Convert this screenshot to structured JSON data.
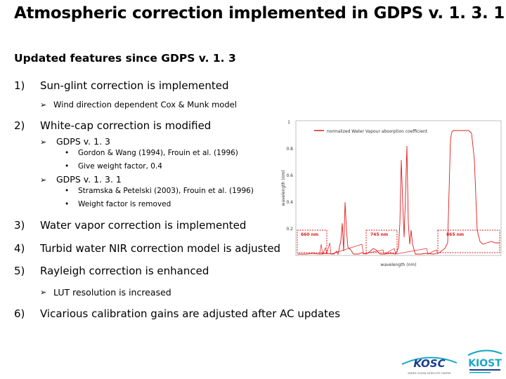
{
  "title": "Atmospheric correction implemented in GDPS v. 1. 3. 1",
  "subtitle": "Updated features since GDPS v. 1. 3",
  "items": [
    {
      "num": "1)",
      "label": "Sun-glint correction is implemented",
      "sub": [
        {
          "text": "Wind direction dependent Cox & Munk model"
        }
      ]
    },
    {
      "num": "2)",
      "label": "White-cap correction is modified",
      "sub": [
        {
          "text": "GDPS v. 1. 3",
          "bullets": [
            "Gordon & Wang (1994), Frouin et al. (1996)",
            "Give weight factor, 0.4"
          ]
        },
        {
          "text": "GDPS v. 1. 3. 1",
          "bullets": [
            "Stramska & Petelski (2003), Frouin et al. (1996)",
            "Weight factor is removed"
          ]
        }
      ]
    },
    {
      "num": "3)",
      "label": "Water vapor correction is implemented"
    },
    {
      "num": "4)",
      "label": "Turbid water NIR correction model is adjusted"
    },
    {
      "num": "5)",
      "label": "Rayleigh correction is enhanced",
      "sub": [
        {
          "text": "LUT resolution is increased"
        }
      ]
    },
    {
      "num": "6)",
      "label": "Vicarious calibration gains are adjusted after AC updates"
    }
  ],
  "chart_data": {
    "type": "line",
    "legend": "normalized Water Vapour absorption coefficient",
    "xlabel": "wavelength (nm)",
    "ylabel": "wavelength (nm)",
    "yticks": [
      "1",
      "0.8",
      "0.6",
      "0.4",
      "0.2"
    ],
    "ylim": [
      0,
      1
    ],
    "annotations": [
      "660 nm",
      "745 nm",
      "865 nm"
    ],
    "series": [
      {
        "name": "normalized Water Vapour absorption coefficient",
        "color": "#e11c1c"
      }
    ]
  },
  "logos": {
    "left": "KOSC",
    "right": "KIOST",
    "left_sub": "KOREA OCEAN SATELLITE CENTER"
  },
  "colors": {
    "accent": "#e11c1c",
    "logo_blue": "#1c3f8c",
    "logo_teal": "#1aa6c8"
  }
}
